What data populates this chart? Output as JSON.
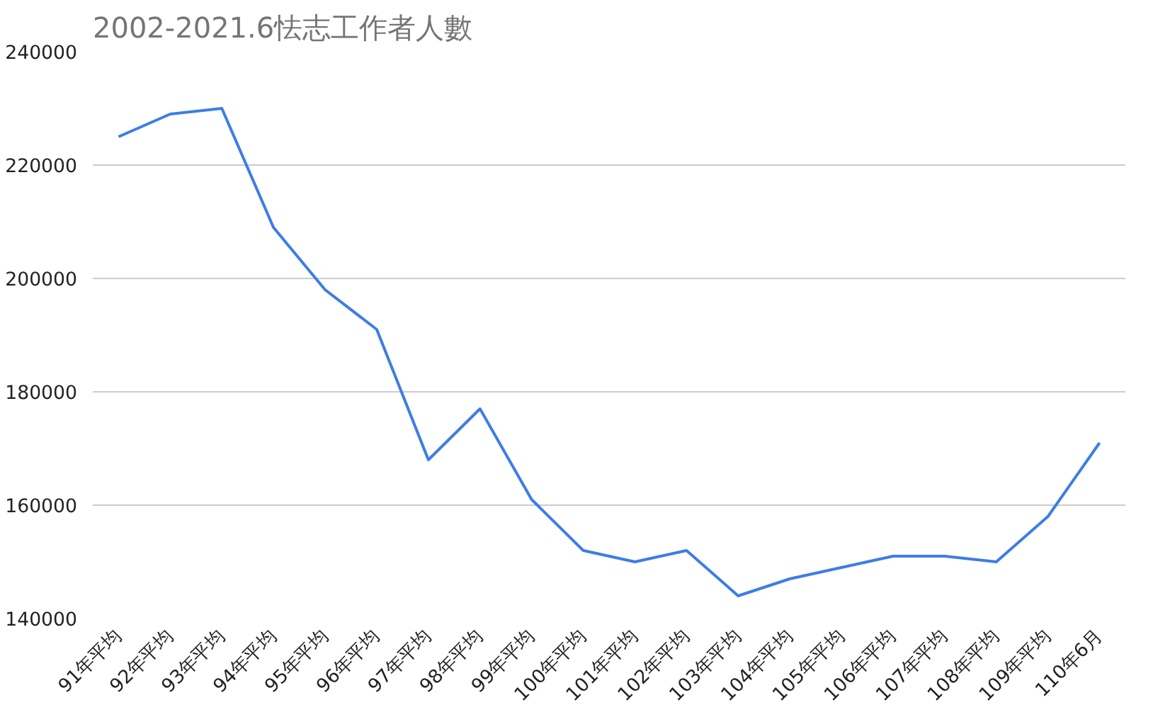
{
  "chart_data": {
    "type": "line",
    "title": "2002-2021.6怯志工作者人數",
    "categories": [
      "91年平均",
      "92年平均",
      "93年平均",
      "94年平均",
      "95年平均",
      "96年平均",
      "97年平均",
      "98年平均",
      "99年平均",
      "100年平均",
      "101年平均",
      "102年平均",
      "103年平均",
      "104年平均",
      "105年平均",
      "106年平均",
      "107年平均",
      "108年平均",
      "109年平均",
      "110年6月"
    ],
    "values": [
      225000,
      229000,
      230000,
      209000,
      198000,
      191000,
      168000,
      177000,
      161000,
      152000,
      150000,
      152000,
      144000,
      147000,
      149000,
      151000,
      151000,
      150000,
      158000,
      171000
    ],
    "color": "#3d7de6",
    "ylim": [
      140000,
      240000
    ],
    "yticks": [
      140000,
      160000,
      180000,
      200000,
      220000,
      240000
    ],
    "grid": "y",
    "marker": "none",
    "line_style": "solid"
  }
}
